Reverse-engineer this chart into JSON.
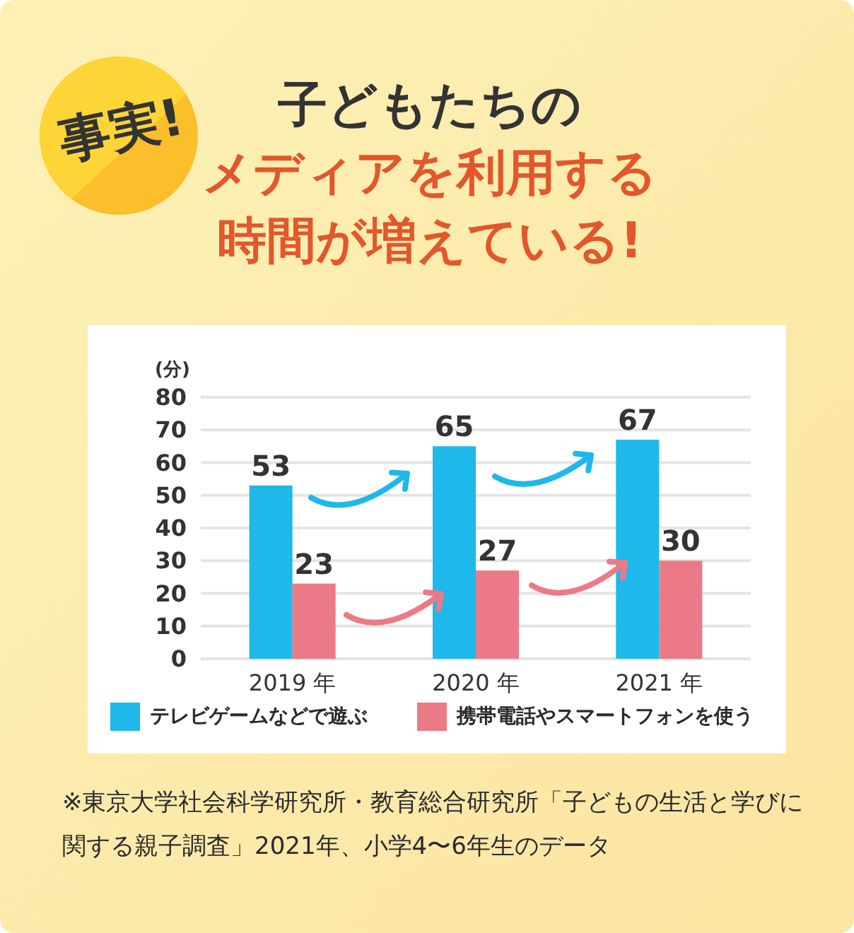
{
  "chart_data": {
    "type": "bar",
    "title": "子どもたちのメディアを利用する時間が増えている!",
    "ylabel": "(分)",
    "categories": [
      "2019 年",
      "2020 年",
      "2021 年"
    ],
    "series": [
      {
        "name": "テレビゲームなどで遊ぶ",
        "color": "#1eb8ea",
        "values": [
          53,
          65,
          67
        ]
      },
      {
        "name": "携帯電話やスマートフォンを使う",
        "color": "#ec7a86",
        "values": [
          23,
          27,
          30
        ]
      }
    ],
    "ylim": [
      0,
      80
    ],
    "yticks": [
      0,
      10,
      20,
      30,
      40,
      50,
      60,
      70,
      80
    ],
    "grid": "y",
    "legend": "bottom",
    "data_labels": true,
    "annotations": [
      "事実!",
      "※東京大学社会科学研究所・教育総合研究所「子どもの生活と学びに関する親子調査」2021年、小学4〜6年生のデータ"
    ]
  }
}
